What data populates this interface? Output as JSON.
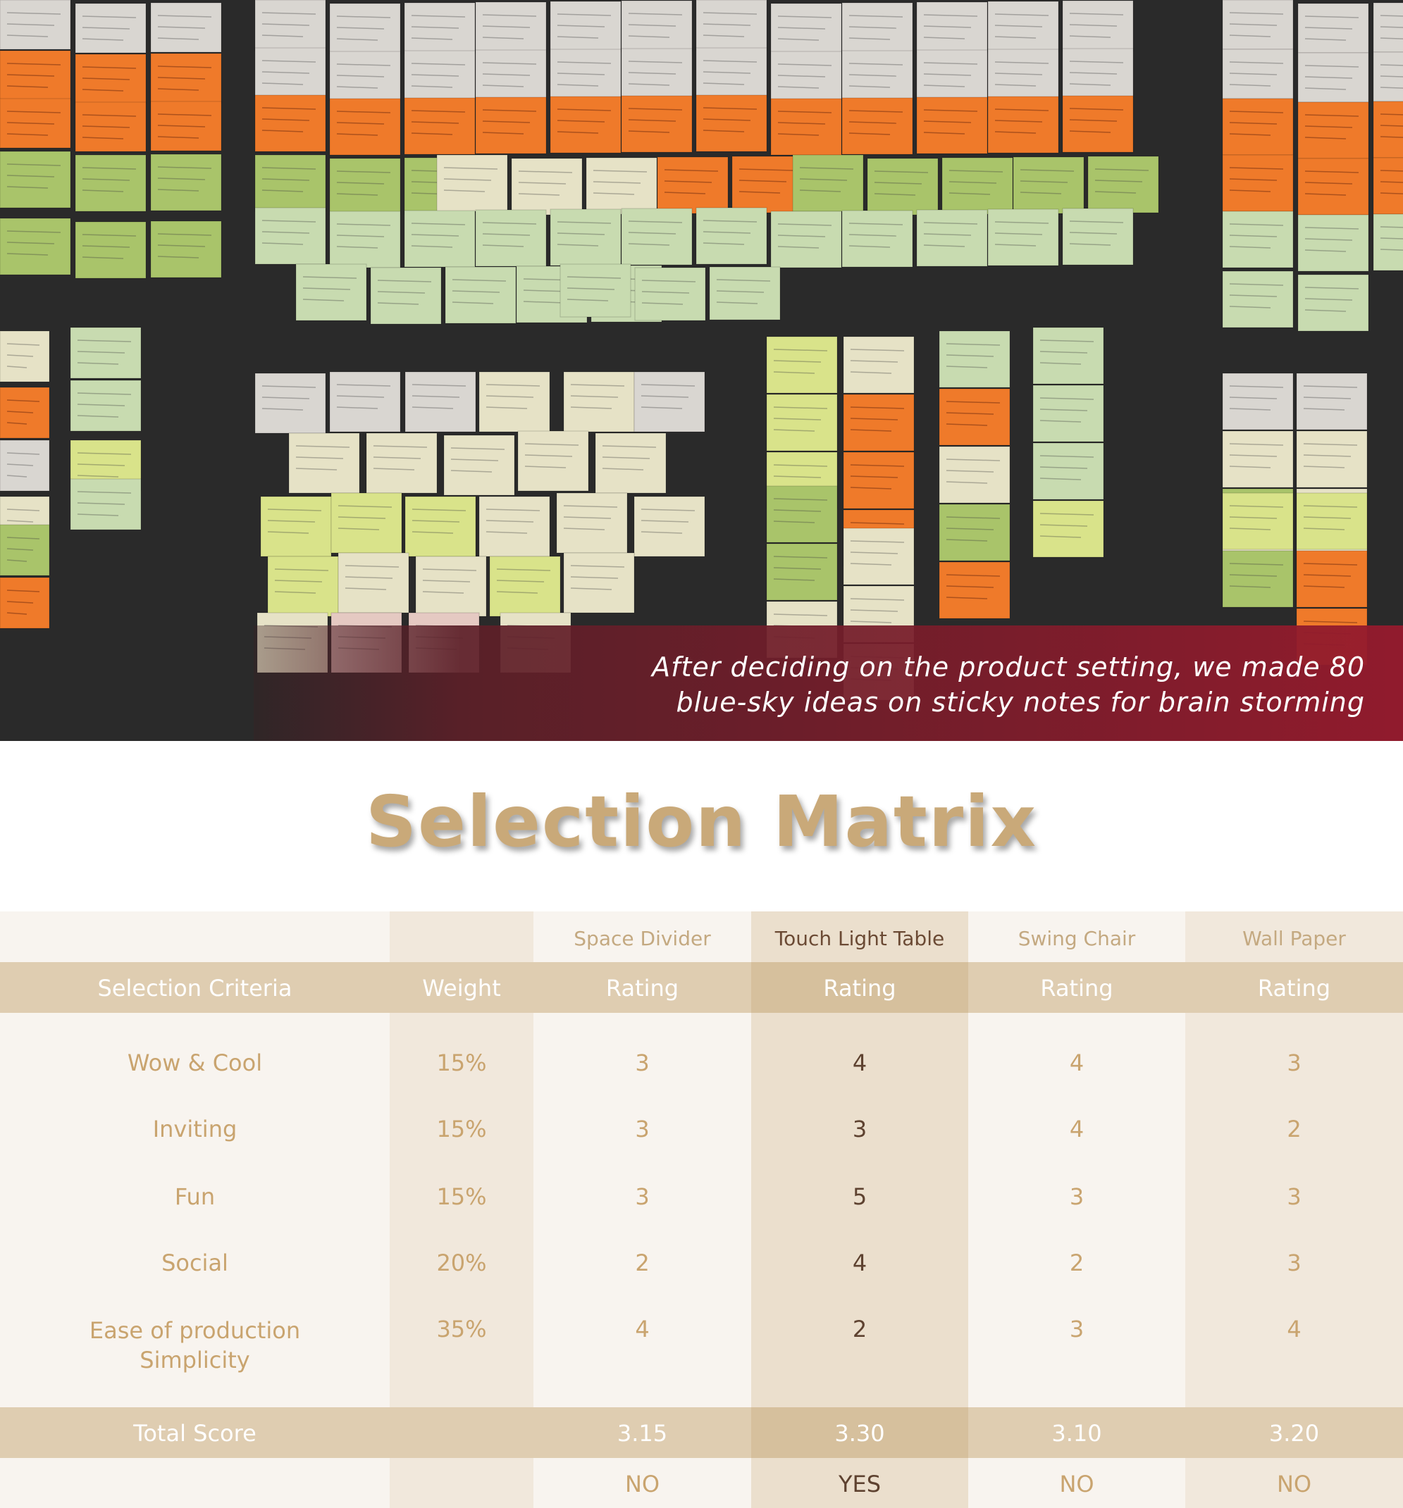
{
  "hero": {
    "caption_line1": "After deciding on the product setting, we made 80",
    "caption_line2": "blue-sky ideas on sticky notes for brain storming"
  },
  "title": "Selection Matrix",
  "matrix": {
    "options": [
      "Space Divider",
      "Touch Light Table",
      "Swing Chair",
      "Wall Paper"
    ],
    "criteria_header": "Selection Criteria",
    "weight_header": "Weight",
    "rating_label": "Rating",
    "rows": [
      {
        "criterion": "Wow & Cool",
        "weight": "15%",
        "ratings": [
          "3",
          "4",
          "4",
          "3"
        ]
      },
      {
        "criterion": "Inviting",
        "weight": "15%",
        "ratings": [
          "3",
          "3",
          "4",
          "2"
        ]
      },
      {
        "criterion": "Fun",
        "weight": "15%",
        "ratings": [
          "3",
          "5",
          "3",
          "3"
        ]
      },
      {
        "criterion": "Social",
        "weight": "20%",
        "ratings": [
          "2",
          "4",
          "2",
          "3"
        ]
      },
      {
        "criterion": "Ease of production",
        "criterion_line2": "Simplicity",
        "weight": "35%",
        "ratings": [
          "4",
          "2",
          "3",
          "4"
        ]
      }
    ],
    "total_label": "Total Score",
    "totals": [
      "3.15",
      "3.30",
      "3.10",
      "3.20"
    ],
    "decisions": [
      "NO",
      "YES",
      "NO",
      "NO"
    ],
    "highlight_option_index": 1
  },
  "colors": {
    "title": "#c9a979",
    "text_gold": "#c9a46f",
    "text_brown": "#5e4230",
    "band_dark": "#dfcdb1",
    "band_highlight": "#d6c09d",
    "caption_band": "#961a2d"
  }
}
